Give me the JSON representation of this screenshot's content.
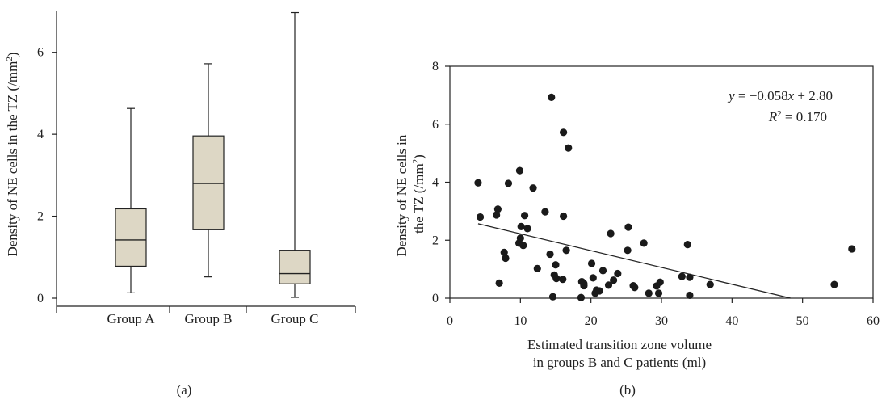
{
  "colors": {
    "box_fill": "#ddd7c5",
    "stroke": "#222222",
    "dot": "#1a1a1a"
  },
  "chart_data": [
    {
      "panel_label": "(a)",
      "type": "box",
      "ylabel_html": "Density of NE cells in the TZ (/mm²)",
      "ylabel": {
        "main": "Density of NE cells in the TZ (/mm",
        "sup": "2",
        "close": ")"
      },
      "ylim": [
        0,
        7
      ],
      "yticks": [
        0,
        2,
        4,
        6
      ],
      "ytick_labels": [
        "0",
        "2",
        "4",
        "6"
      ],
      "categories": [
        "Group A",
        "Group B",
        "Group C"
      ],
      "boxes": [
        {
          "min": 0.13,
          "q1": 0.78,
          "median": 1.42,
          "q3": 2.18,
          "max": 4.63
        },
        {
          "min": 0.52,
          "q1": 1.67,
          "median": 2.8,
          "q3": 3.96,
          "max": 5.72
        },
        {
          "min": 0.02,
          "q1": 0.35,
          "median": 0.6,
          "q3": 1.17,
          "max": 6.97
        }
      ],
      "grid": false
    },
    {
      "panel_label": "(b)",
      "type": "scatter",
      "xlabel_lines": [
        "Estimated transition zone volume",
        "in groups B and C patients (ml)"
      ],
      "ylabel": {
        "line1": "Density of NE cells in",
        "line2_main": "the TZ (/mm",
        "sup": "2",
        "close": ")"
      },
      "xlim": [
        0,
        60
      ],
      "ylim": [
        0,
        8
      ],
      "xticks": [
        0,
        10,
        20,
        30,
        40,
        50,
        60
      ],
      "xtick_labels": [
        "0",
        "10",
        "20",
        "30",
        "40",
        "50",
        "60"
      ],
      "yticks": [
        0,
        2,
        4,
        6,
        8
      ],
      "ytick_labels": [
        "0",
        "2",
        "4",
        "6",
        "8"
      ],
      "equation": {
        "y": "y",
        "eq": " = −0.058",
        "x": "x",
        "rest": " + 2.80"
      },
      "r2": {
        "r": "R",
        "sup": "2",
        "rest": " = 0.170"
      },
      "fit": {
        "slope": -0.058,
        "intercept": 2.8,
        "x_start": 4,
        "x_end": 48.3
      },
      "points": [
        [
          4.0,
          3.98
        ],
        [
          4.3,
          2.8
        ],
        [
          6.6,
          2.87
        ],
        [
          6.8,
          3.07
        ],
        [
          7.0,
          0.52
        ],
        [
          7.7,
          1.58
        ],
        [
          7.9,
          1.38
        ],
        [
          8.3,
          3.96
        ],
        [
          9.9,
          4.4
        ],
        [
          9.8,
          1.9
        ],
        [
          10.0,
          2.07
        ],
        [
          10.1,
          2.47
        ],
        [
          10.4,
          1.82
        ],
        [
          10.6,
          2.85
        ],
        [
          11.0,
          2.4
        ],
        [
          11.8,
          3.8
        ],
        [
          12.4,
          1.02
        ],
        [
          13.5,
          2.98
        ],
        [
          14.2,
          1.52
        ],
        [
          14.4,
          6.93
        ],
        [
          14.6,
          0.05
        ],
        [
          14.8,
          0.8
        ],
        [
          15.0,
          1.15
        ],
        [
          15.1,
          0.68
        ],
        [
          16.0,
          0.65
        ],
        [
          16.1,
          2.83
        ],
        [
          16.1,
          5.72
        ],
        [
          16.5,
          1.65
        ],
        [
          16.8,
          5.18
        ],
        [
          18.6,
          0.02
        ],
        [
          18.7,
          0.57
        ],
        [
          19.0,
          0.43
        ],
        [
          19.0,
          0.5
        ],
        [
          20.1,
          1.2
        ],
        [
          20.3,
          0.7
        ],
        [
          20.6,
          0.17
        ],
        [
          20.8,
          0.28
        ],
        [
          21.2,
          0.25
        ],
        [
          21.7,
          0.95
        ],
        [
          22.5,
          0.45
        ],
        [
          22.8,
          2.23
        ],
        [
          23.2,
          0.62
        ],
        [
          23.8,
          0.85
        ],
        [
          25.2,
          1.65
        ],
        [
          25.3,
          2.45
        ],
        [
          26.0,
          0.43
        ],
        [
          26.2,
          0.37
        ],
        [
          27.5,
          1.9
        ],
        [
          28.2,
          0.17
        ],
        [
          29.3,
          0.42
        ],
        [
          29.6,
          0.17
        ],
        [
          29.8,
          0.55
        ],
        [
          32.9,
          0.75
        ],
        [
          33.7,
          1.85
        ],
        [
          34.0,
          0.72
        ],
        [
          34.0,
          0.1
        ],
        [
          36.9,
          0.47
        ],
        [
          54.5,
          0.47
        ],
        [
          57.0,
          1.7
        ]
      ],
      "grid": false
    }
  ]
}
